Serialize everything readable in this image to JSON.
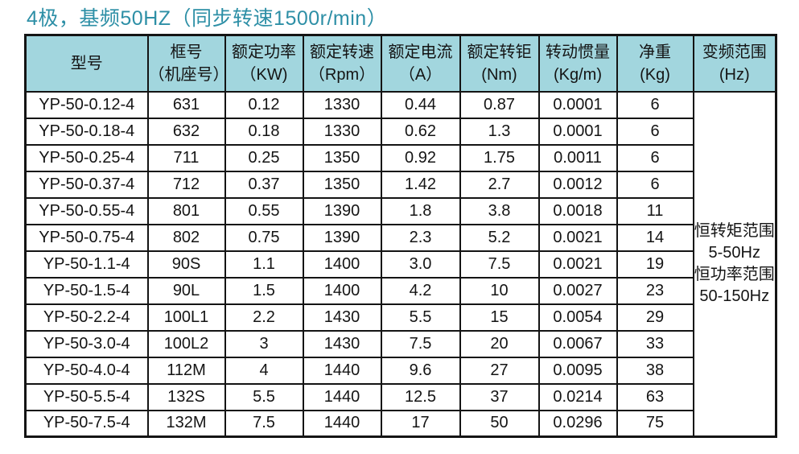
{
  "title": "4极，基频50HZ（同步转速1500r/min）",
  "colors": {
    "title_text": "#2d8fa6",
    "header_bg": "#a2d6de",
    "border": "#141414",
    "row_bg": "#ffffff"
  },
  "chart_data": {
    "type": "table",
    "title": "4极，基频50HZ（同步转速1500r/min）",
    "columns": [
      "型号",
      "框号（机座号）",
      "额定功率（KW)",
      "额定转速（Rpm）",
      "额定电流（A）",
      "额定转钜(Nm)",
      "转动惯量(Kg/m)",
      "净重(Kg)",
      "变频范围(Hz)"
    ],
    "rows": [
      [
        "YP-50-0.12-4",
        "631",
        "0.12",
        "1330",
        "0.44",
        "0.87",
        "0.0001",
        "6"
      ],
      [
        "YP-50-0.18-4",
        "632",
        "0.18",
        "1330",
        "0.62",
        "1.3",
        "0.0001",
        "6"
      ],
      [
        "YP-50-0.25-4",
        "711",
        "0.25",
        "1350",
        "0.92",
        "1.75",
        "0.0011",
        "6"
      ],
      [
        "YP-50-0.37-4",
        "712",
        "0.37",
        "1350",
        "1.42",
        "2.7",
        "0.0012",
        "6"
      ],
      [
        "YP-50-0.55-4",
        "801",
        "0.55",
        "1390",
        "1.8",
        "3.8",
        "0.0018",
        "11"
      ],
      [
        "YP-50-0.75-4",
        "802",
        "0.75",
        "1390",
        "2.3",
        "5.2",
        "0.0021",
        "14"
      ],
      [
        "YP-50-1.1-4",
        "90S",
        "1.1",
        "1400",
        "3.0",
        "7.5",
        "0.0021",
        "19"
      ],
      [
        "YP-50-1.5-4",
        "90L",
        "1.5",
        "1400",
        "4.2",
        "10",
        "0.0027",
        "23"
      ],
      [
        "YP-50-2.2-4",
        "100L1",
        "2.2",
        "1430",
        "5.5",
        "15",
        "0.0054",
        "29"
      ],
      [
        "YP-50-3.0-4",
        "100L2",
        "3",
        "1430",
        "7.5",
        "20",
        "0.0067",
        "33"
      ],
      [
        "YP-50-4.0-4",
        "112M",
        "4",
        "1440",
        "9.6",
        "27",
        "0.0095",
        "38"
      ],
      [
        "YP-50-5.5-4",
        "132S",
        "5.5",
        "1440",
        "12.5",
        "37",
        "0.0214",
        "63"
      ],
      [
        "YP-50-7.5-4",
        "132M",
        "7.5",
        "1440",
        "17",
        "50",
        "0.0296",
        "75"
      ]
    ],
    "merged_last_column_text": [
      "恒转矩范围",
      "5-50Hz",
      "恒功率范围",
      "50-150Hz"
    ]
  },
  "table": {
    "headers": [
      {
        "line1": "型号",
        "line2": ""
      },
      {
        "line1": "框号",
        "line2": "（机座号）"
      },
      {
        "line1": "额定功率",
        "line2": "（KW)"
      },
      {
        "line1": "额定转速",
        "line2": "（Rpm）"
      },
      {
        "line1": "额定电流",
        "line2": "（A）"
      },
      {
        "line1": "额定转钜",
        "line2": "(Nm)"
      },
      {
        "line1": "转动惯量",
        "line2": "(Kg/m)"
      },
      {
        "line1": "净重",
        "line2": "(Kg)"
      },
      {
        "line1": "变频范围",
        "line2": "(Hz)"
      }
    ],
    "rows": [
      [
        "YP-50-0.12-4",
        "631",
        "0.12",
        "1330",
        "0.44",
        "0.87",
        "0.0001",
        "6"
      ],
      [
        "YP-50-0.18-4",
        "632",
        "0.18",
        "1330",
        "0.62",
        "1.3",
        "0.0001",
        "6"
      ],
      [
        "YP-50-0.25-4",
        "711",
        "0.25",
        "1350",
        "0.92",
        "1.75",
        "0.0011",
        "6"
      ],
      [
        "YP-50-0.37-4",
        "712",
        "0.37",
        "1350",
        "1.42",
        "2.7",
        "0.0012",
        "6"
      ],
      [
        "YP-50-0.55-4",
        "801",
        "0.55",
        "1390",
        "1.8",
        "3.8",
        "0.0018",
        "11"
      ],
      [
        "YP-50-0.75-4",
        "802",
        "0.75",
        "1390",
        "2.3",
        "5.2",
        "0.0021",
        "14"
      ],
      [
        "YP-50-1.1-4",
        "90S",
        "1.1",
        "1400",
        "3.0",
        "7.5",
        "0.0021",
        "19"
      ],
      [
        "YP-50-1.5-4",
        "90L",
        "1.5",
        "1400",
        "4.2",
        "10",
        "0.0027",
        "23"
      ],
      [
        "YP-50-2.2-4",
        "100L1",
        "2.2",
        "1430",
        "5.5",
        "15",
        "0.0054",
        "29"
      ],
      [
        "YP-50-3.0-4",
        "100L2",
        "3",
        "1430",
        "7.5",
        "20",
        "0.0067",
        "33"
      ],
      [
        "YP-50-4.0-4",
        "112M",
        "4",
        "1440",
        "9.6",
        "27",
        "0.0095",
        "38"
      ],
      [
        "YP-50-5.5-4",
        "132S",
        "5.5",
        "1440",
        "12.5",
        "37",
        "0.0214",
        "63"
      ],
      [
        "YP-50-7.5-4",
        "132M",
        "7.5",
        "1440",
        "17",
        "50",
        "0.0296",
        "75"
      ]
    ],
    "freq_range_lines": [
      "恒转矩范围",
      "5-50Hz",
      "恒功率范围",
      "50-150Hz"
    ]
  }
}
